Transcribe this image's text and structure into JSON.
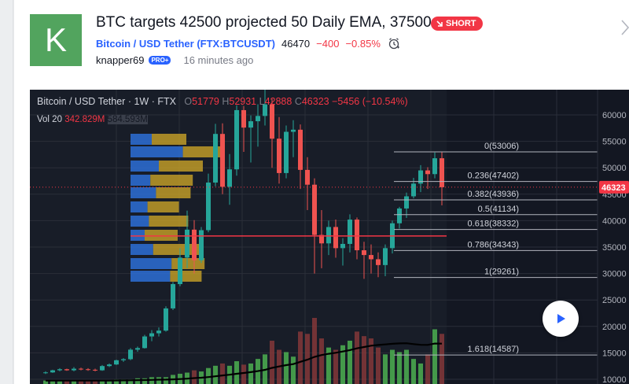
{
  "idea": {
    "avatar_letter": "K",
    "title": "BTC targets 42500 projected 50 Daily EMA, 37500",
    "badge": "SHORT",
    "symbol_link": "Bitcoin / USD Tether (FTX:BTCUSDT)",
    "price": "46470",
    "change_abs": "−400",
    "change_pct": "−0.85%",
    "author": "knapper69",
    "author_badge": "PRO+",
    "time_ago": "16 minutes ago"
  },
  "chart": {
    "symbol": "Bitcoin / USD Tether",
    "interval": "1W",
    "exchange": "FTX",
    "o_label": "O",
    "o": "51779",
    "h_label": "H",
    "h": "52931",
    "l_label": "L",
    "l": "42888",
    "c_label": "C",
    "c": "46323",
    "change": "−5456 (−10.54%)",
    "vol_label": "Vol 20",
    "vol_value": "342.829M",
    "vol_ma": "584.593M",
    "current_price_tag": "46323",
    "colors": {
      "up": "#26a69a",
      "down": "#ef5350",
      "fib_line": "#b2b5be",
      "hline": "#f23645",
      "vol_up": "#4caf50",
      "vol_down": "#8b3a3a"
    }
  },
  "chart_data": {
    "type": "candlestick",
    "y_ticks": [
      "60000",
      "55000",
      "50000",
      "45000",
      "40000",
      "35000",
      "30000",
      "25000",
      "20000",
      "15000",
      "10000"
    ],
    "fib_levels": [
      {
        "label": "0(53006)",
        "ratio": 0,
        "price": 53006
      },
      {
        "label": "0.236(47402)",
        "ratio": 0.236,
        "price": 47402
      },
      {
        "label": "0.382(43936)",
        "ratio": 0.382,
        "price": 43936
      },
      {
        "label": "0.5(41134)",
        "ratio": 0.5,
        "price": 41134
      },
      {
        "label": "0.618(38332)",
        "ratio": 0.618,
        "price": 38332
      },
      {
        "label": "0.786(34343)",
        "ratio": 0.786,
        "price": 34343
      },
      {
        "label": "1(29261)",
        "ratio": 1,
        "price": 29261
      },
      {
        "label": "1.618(14587)",
        "ratio": 1.618,
        "price": 14587
      }
    ],
    "horizontal_line": 37100,
    "current_price": 46323,
    "candles": [
      [
        11200,
        11500,
        11000,
        11300
      ],
      [
        11300,
        11800,
        11200,
        11700
      ],
      [
        11700,
        12100,
        11500,
        11900
      ],
      [
        11900,
        12000,
        11600,
        11700
      ],
      [
        11700,
        12300,
        11500,
        12000
      ],
      [
        12000,
        12200,
        11700,
        11900
      ],
      [
        11900,
        12100,
        11600,
        11800
      ],
      [
        11800,
        12000,
        11500,
        11700
      ],
      [
        11700,
        12700,
        11600,
        12500
      ],
      [
        12500,
        13000,
        12300,
        12800
      ],
      [
        12800,
        13700,
        12700,
        13600
      ],
      [
        13600,
        14000,
        13300,
        13800
      ],
      [
        13800,
        15900,
        13600,
        15600
      ],
      [
        15600,
        16200,
        15200,
        15900
      ],
      [
        15900,
        18400,
        15800,
        18100
      ],
      [
        18100,
        19300,
        17200,
        18700
      ],
      [
        18700,
        19800,
        18100,
        19200
      ],
      [
        19200,
        23800,
        19000,
        23400
      ],
      [
        23400,
        28400,
        23100,
        28000
      ],
      [
        28000,
        34800,
        27600,
        33000
      ],
      [
        33000,
        41900,
        31000,
        38300
      ],
      [
        38300,
        40100,
        30000,
        32500
      ],
      [
        32500,
        38800,
        32000,
        38200
      ],
      [
        38200,
        48900,
        37800,
        47200
      ],
      [
        47200,
        58300,
        46500,
        56400
      ],
      [
        56400,
        58400,
        45000,
        46400
      ],
      [
        46400,
        52600,
        43000,
        49700
      ],
      [
        49700,
        61800,
        48500,
        60900
      ],
      [
        60900,
        61700,
        53000,
        57600
      ],
      [
        57600,
        59900,
        51000,
        58800
      ],
      [
        58800,
        62000,
        54000,
        59800
      ],
      [
        59800,
        64800,
        58000,
        62000
      ],
      [
        62000,
        63000,
        50000,
        55500
      ],
      [
        55500,
        59600,
        47000,
        49000
      ],
      [
        49000,
        58000,
        48000,
        56800
      ],
      [
        56800,
        59000,
        52000,
        57200
      ],
      [
        57200,
        58200,
        46000,
        49600
      ],
      [
        49600,
        52000,
        42000,
        46800
      ],
      [
        46800,
        48000,
        30000,
        37300
      ],
      [
        37300,
        42000,
        31000,
        35700
      ],
      [
        35700,
        40000,
        33500,
        38800
      ],
      [
        38800,
        40200,
        33000,
        34800
      ],
      [
        34800,
        36700,
        31500,
        35600
      ],
      [
        35600,
        41200,
        34000,
        40200
      ],
      [
        40200,
        40600,
        32700,
        34400
      ],
      [
        34400,
        36000,
        29000,
        33500
      ],
      [
        33500,
        35500,
        30000,
        32700
      ],
      [
        32700,
        34000,
        29300,
        31600
      ],
      [
        31600,
        35500,
        29500,
        34800
      ],
      [
        34800,
        40000,
        33800,
        39500
      ],
      [
        39500,
        42600,
        38500,
        42300
      ],
      [
        42300,
        45300,
        40500,
        44600
      ],
      [
        44600,
        48100,
        44200,
        47000
      ],
      [
        47000,
        50500,
        45400,
        49500
      ],
      [
        49500,
        50100,
        46000,
        48800
      ],
      [
        48800,
        52900,
        48000,
        51800
      ],
      [
        51800,
        52931,
        42888,
        46323
      ]
    ],
    "volume": [
      3,
      3,
      3,
      3,
      3,
      3,
      3,
      3,
      3,
      3,
      4,
      4,
      4,
      5,
      5,
      6,
      6,
      6,
      8,
      9,
      10,
      12,
      11,
      14,
      16,
      18,
      16,
      20,
      17,
      18,
      22,
      26,
      38,
      30,
      28,
      24,
      46,
      44,
      58,
      40,
      32,
      30,
      34,
      38,
      46,
      42,
      40,
      32,
      26,
      30,
      28,
      30,
      22,
      18,
      26,
      48,
      44
    ]
  }
}
